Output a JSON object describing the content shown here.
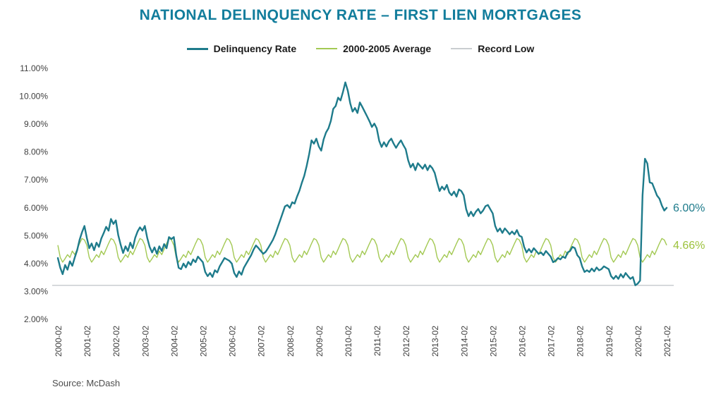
{
  "page": {
    "source": "Source: McDash"
  },
  "chart_data": {
    "type": "line",
    "title": "NATIONAL DELINQUENCY RATE – FIRST LIEN MORTGAGES",
    "x_start": "2000-02",
    "x_end": "2021-02",
    "x_interval": "monthly",
    "x_tick_labels": [
      "2000-02",
      "2001-02",
      "2002-02",
      "2003-02",
      "2004-02",
      "2005-02",
      "2006-02",
      "2007-02",
      "2008-02",
      "2009-02",
      "2010-02",
      "2011-02",
      "2012-02",
      "2013-02",
      "2014-02",
      "2015-02",
      "2016-02",
      "2017-02",
      "2018-02",
      "2019-02",
      "2020-02",
      "2021-02"
    ],
    "ylim": [
      2,
      11
    ],
    "y_tick_step": 1,
    "y_tick_format": "0.00%",
    "grid": false,
    "legend_position": "top",
    "series": [
      {
        "name": "Delinquency Rate",
        "color": "#1e7b8b",
        "values": [
          4.2,
          3.85,
          3.62,
          3.95,
          3.78,
          4.08,
          3.92,
          4.22,
          4.48,
          4.85,
          5.12,
          5.35,
          4.92,
          4.55,
          4.72,
          4.48,
          4.75,
          4.6,
          4.9,
          5.1,
          5.32,
          5.18,
          5.6,
          5.42,
          5.55,
          5.02,
          4.68,
          4.38,
          4.62,
          4.45,
          4.75,
          4.55,
          4.92,
          5.15,
          5.3,
          5.18,
          5.35,
          4.92,
          4.6,
          4.4,
          4.58,
          4.35,
          4.62,
          4.45,
          4.7,
          4.55,
          4.95,
          4.88,
          4.95,
          4.3,
          3.85,
          3.8,
          4.0,
          3.86,
          4.06,
          3.95,
          4.15,
          4.05,
          4.25,
          4.15,
          4.05,
          3.7,
          3.55,
          3.66,
          3.52,
          3.76,
          3.68,
          3.9,
          4.05,
          4.2,
          4.15,
          4.1,
          4.0,
          3.66,
          3.52,
          3.72,
          3.6,
          3.85,
          4.0,
          4.15,
          4.3,
          4.5,
          4.65,
          4.56,
          4.45,
          4.35,
          4.42,
          4.55,
          4.7,
          4.85,
          5.05,
          5.3,
          5.55,
          5.8,
          6.05,
          6.1,
          6.0,
          6.2,
          6.15,
          6.4,
          6.62,
          6.9,
          7.15,
          7.5,
          7.92,
          8.42,
          8.3,
          8.48,
          8.2,
          8.05,
          8.45,
          8.7,
          8.85,
          9.12,
          9.55,
          9.65,
          9.95,
          9.85,
          10.15,
          10.5,
          10.2,
          9.75,
          9.45,
          9.58,
          9.4,
          9.78,
          9.62,
          9.45,
          9.28,
          9.1,
          8.9,
          9.02,
          8.85,
          8.4,
          8.18,
          8.35,
          8.2,
          8.38,
          8.48,
          8.3,
          8.15,
          8.3,
          8.42,
          8.25,
          8.1,
          7.7,
          7.45,
          7.58,
          7.35,
          7.6,
          7.5,
          7.4,
          7.55,
          7.35,
          7.52,
          7.42,
          7.25,
          6.9,
          6.6,
          6.76,
          6.65,
          6.82,
          6.55,
          6.45,
          6.58,
          6.4,
          6.66,
          6.6,
          6.45,
          5.95,
          5.7,
          5.86,
          5.7,
          5.86,
          5.96,
          5.8,
          5.9,
          6.06,
          6.1,
          5.95,
          5.8,
          5.35,
          5.15,
          5.26,
          5.1,
          5.26,
          5.16,
          5.05,
          5.15,
          5.05,
          5.2,
          5.0,
          4.96,
          4.6,
          4.4,
          4.52,
          4.4,
          4.55,
          4.45,
          4.35,
          4.4,
          4.3,
          4.45,
          4.35,
          4.25,
          4.05,
          4.1,
          4.2,
          4.15,
          4.25,
          4.2,
          4.4,
          4.45,
          4.6,
          4.55,
          4.3,
          4.2,
          3.9,
          3.7,
          3.76,
          3.7,
          3.82,
          3.72,
          3.86,
          3.76,
          3.8,
          3.9,
          3.85,
          3.8,
          3.55,
          3.45,
          3.56,
          3.45,
          3.62,
          3.5,
          3.66,
          3.55,
          3.45,
          3.52,
          3.22,
          3.28,
          3.39,
          6.45,
          7.76,
          7.59,
          6.91,
          6.88,
          6.66,
          6.44,
          6.33,
          6.08,
          5.9,
          6.0
        ]
      },
      {
        "name": "2000-2005 Average",
        "color": "#a3c953",
        "pattern_repeats_annually": true,
        "seasonal_pattern_jan_dec": [
          4.85,
          4.66,
          4.22,
          4.05,
          4.18,
          4.32,
          4.22,
          4.45,
          4.32,
          4.52,
          4.72,
          4.9
        ],
        "end_value": 4.66
      },
      {
        "name": "Record Low",
        "color": "#c9cdd0",
        "value": 3.22
      }
    ],
    "annotations": [
      {
        "text": "6.00%",
        "value": 6.0,
        "color": "#1e7b8b"
      },
      {
        "text": "4.66%",
        "value": 4.66,
        "color": "#9cc23c"
      }
    ]
  }
}
